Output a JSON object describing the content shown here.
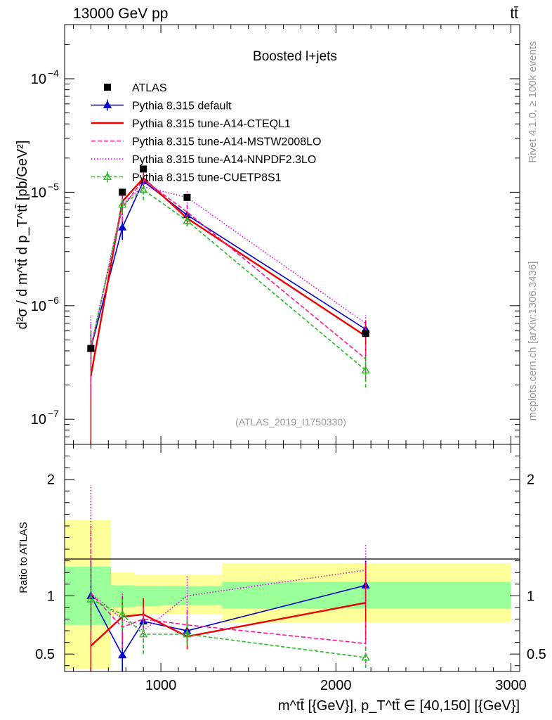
{
  "header": {
    "left": "13000 GeV pp",
    "right": "tt̄"
  },
  "side": {
    "rivet": "Rivet 4.1.0, ≥ 100k events",
    "mcplots": "mcplots.cern.ch [arXiv:1306.3436]"
  },
  "chart_data": {
    "type": "line",
    "title": "Boosted l+jets",
    "analysis_id": "(ATLAS_2019_I1750330)",
    "ylabel": "d²σ / d m^tt̄ d p_T^tt̄ [pb/GeV²]",
    "xlabel": "m^tt̄ [{GeV}], p_T^tt̄ ∈ [40,150] [{GeV}]",
    "xlim": [
      450,
      3050
    ],
    "ylim": [
      6e-08,
      0.0003
    ],
    "ratio_ylabel": "Ratio to ATLAS",
    "ratio_ylim": [
      0.35,
      2.3
    ],
    "x_ticks": [
      1000,
      2000,
      3000
    ],
    "x_tick_labels": [
      "1000",
      "2000",
      "3000"
    ],
    "y_ticks": [
      1e-07,
      1e-06,
      1e-05,
      0.0001
    ],
    "y_tick_labels": [
      "10",
      "10",
      "10",
      "10"
    ],
    "y_tick_exps": [
      "−7",
      "−6",
      "−5",
      "−4"
    ],
    "ratio_ticks": [
      0.5,
      1,
      2
    ],
    "ratio_tick_labels": [
      "0.5",
      "1",
      "2"
    ],
    "ratio_tick_labels_right": [
      "0.5",
      "1",
      "2"
    ],
    "bins": [
      {
        "lo": 450,
        "hi": 715,
        "x": 600
      },
      {
        "lo": 715,
        "hi": 850,
        "x": 780
      },
      {
        "lo": 850,
        "hi": 1000,
        "x": 900
      },
      {
        "lo": 1000,
        "hi": 1350,
        "x": 1150
      },
      {
        "lo": 1350,
        "hi": 3000,
        "x": 2170
      }
    ],
    "data": {
      "name": "ATLAS",
      "x": [
        600,
        780,
        900,
        1150,
        2170
      ],
      "y": [
        4.2e-07,
        1e-05,
        1.6e-05,
        9e-06,
        5.7e-07
      ],
      "band_stat": [
        [
          0.75,
          1.25
        ],
        [
          0.9,
          1.09
        ],
        [
          0.91,
          1.08
        ],
        [
          0.92,
          1.08
        ],
        [
          0.89,
          1.12
        ]
      ],
      "band_total": [
        [
          0.37,
          1.65
        ],
        [
          0.83,
          1.2
        ],
        [
          0.84,
          1.18
        ],
        [
          0.84,
          1.18
        ],
        [
          0.77,
          1.28
        ]
      ]
    },
    "series": [
      {
        "name": "Pythia 8.315 default",
        "color": "#0000cc",
        "dash": "",
        "marker": "triangle-filled",
        "x": [
          600,
          780,
          900,
          1150,
          2170
        ],
        "y": [
          4.2e-07,
          4.9e-06,
          1.25e-05,
          6.3e-06,
          6.2e-07
        ],
        "err": [
          [
            3e-07,
            6e-07
          ],
          [
            3.8e-06,
            6e-06
          ],
          [
            1.12e-05,
            1.38e-05
          ],
          [
            5.8e-06,
            6.8e-06
          ],
          [
            5.2e-07,
            7.3e-07
          ]
        ],
        "ratio": [
          1.0,
          0.49,
          0.78,
          0.7,
          1.09
        ],
        "ratio_err": [
          [
            0.7,
            1.3
          ],
          [
            0.35,
            0.65
          ],
          [
            0.7,
            0.87
          ],
          [
            0.64,
            0.76
          ],
          [
            0.92,
            1.3
          ]
        ]
      },
      {
        "name": "Pythia 8.315 tune-A14-CTEQL1",
        "color": "#ee0000",
        "dash": "",
        "marker": "none",
        "x": [
          600,
          780,
          900,
          1150,
          2170
        ],
        "y": [
          2.4e-07,
          8.3e-06,
          1.33e-05,
          5.9e-06,
          5.4e-07
        ],
        "err": [
          [
            6e-08,
            5e-07
          ],
          [
            6.5e-06,
            1e-05
          ],
          [
            1.2e-05,
            1.48e-05
          ],
          [
            5e-06,
            6.8e-06
          ],
          [
            3.5e-07,
            7.2e-07
          ]
        ],
        "ratio": [
          0.57,
          0.82,
          0.84,
          0.65,
          0.94
        ],
        "ratio_err": [
          [
            0.35,
            1.0
          ],
          [
            0.62,
            1.0
          ],
          [
            0.72,
            0.98
          ],
          [
            0.54,
            0.78
          ],
          [
            0.62,
            1.28
          ]
        ]
      },
      {
        "name": "Pythia 8.315 tune-A14-MSTW2008LO",
        "color": "#ff1493",
        "dash": "6,3",
        "marker": "none",
        "x": [
          600,
          780,
          900,
          1150,
          2170
        ],
        "y": [
          4.3e-07,
          7.3e-06,
          1.29e-05,
          6.7e-06,
          3.4e-07
        ],
        "err": [
          [
            2e-07,
            7e-07
          ],
          [
            5.5e-06,
            9e-06
          ],
          [
            1.15e-05,
            1.43e-05
          ],
          [
            5.5e-06,
            7.8e-06
          ],
          [
            2.2e-07,
            4.7e-07
          ]
        ],
        "ratio": [
          1.02,
          0.73,
          0.8,
          0.75,
          0.59
        ],
        "ratio_err": [
          [
            0.6,
            1.6
          ],
          [
            0.55,
            0.92
          ],
          [
            0.7,
            0.92
          ],
          [
            0.62,
            0.88
          ],
          [
            0.42,
            0.8
          ]
        ]
      },
      {
        "name": "Pythia 8.315 tune-A14-NNPDF2.3LO",
        "color": "#ee00ee",
        "dash": "1.5,2.5",
        "marker": "none",
        "x": [
          600,
          780,
          900,
          1150,
          2170
        ],
        "y": [
          4.3e-07,
          8e-06,
          1.12e-05,
          9e-06,
          7e-07
        ],
        "err": [
          [
            1.5e-07,
            8e-07
          ],
          [
            6e-06,
            1.05e-05
          ],
          [
            1e-05,
            1.25e-05
          ],
          [
            7.5e-06,
            1.05e-05
          ],
          [
            5.2e-07,
            8.3e-07
          ]
        ],
        "ratio": [
          1.02,
          0.8,
          0.7,
          1.0,
          1.22
        ],
        "ratio_err": [
          [
            0.45,
            1.95
          ],
          [
            0.6,
            1.02
          ],
          [
            0.6,
            0.8
          ],
          [
            0.82,
            1.18
          ],
          [
            0.92,
            1.45
          ]
        ]
      },
      {
        "name": "Pythia 8.315 tune-CUETP8S1",
        "color": "#22bb22",
        "dash": "5,3",
        "marker": "triangle-open",
        "x": [
          600,
          780,
          900,
          1150,
          2170
        ],
        "y": [
          4.2e-07,
          7.8e-06,
          1.05e-05,
          5.6e-06,
          2.7e-07
        ],
        "err": [
          [
            2.5e-07,
            6e-07
          ],
          [
            6.5e-06,
            9.2e-06
          ],
          [
            8.5e-06,
            1.2e-05
          ],
          [
            5e-06,
            6.4e-06
          ],
          [
            1.9e-07,
            3.6e-07
          ]
        ],
        "ratio": [
          0.97,
          0.84,
          0.67,
          0.67,
          0.47
        ],
        "ratio_err": [
          [
            0.7,
            1.25
          ],
          [
            0.7,
            0.97
          ],
          [
            0.5,
            0.8
          ],
          [
            0.58,
            0.8
          ],
          [
            0.38,
            0.56
          ]
        ]
      }
    ]
  }
}
